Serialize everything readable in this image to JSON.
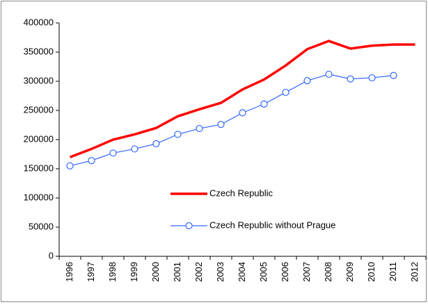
{
  "chart_data": {
    "type": "line",
    "categories": [
      "1996",
      "1997",
      "1998",
      "1999",
      "2000",
      "2001",
      "2002",
      "2003",
      "2004",
      "2005",
      "2006",
      "2007",
      "2008",
      "2009",
      "2010",
      "2011",
      "2012"
    ],
    "series": [
      {
        "name": "Czech Republic",
        "color": "#ff0000",
        "marker": false,
        "values": [
          170000,
          184000,
          200000,
          209000,
          220000,
          240000,
          252000,
          263000,
          286000,
          303000,
          327000,
          355000,
          369000,
          356000,
          361000,
          363000,
          363000
        ]
      },
      {
        "name": "Czech Republic without Prague",
        "color": "#3366ff",
        "marker": true,
        "values": [
          155000,
          164000,
          177000,
          184000,
          193000,
          209000,
          219000,
          226000,
          246000,
          261000,
          281000,
          301000,
          312000,
          304000,
          306000,
          310000,
          null
        ]
      }
    ],
    "ylim": [
      0,
      400000
    ],
    "yticks": [
      0,
      50000,
      100000,
      150000,
      200000,
      250000,
      300000,
      350000,
      400000
    ],
    "grid": false
  }
}
